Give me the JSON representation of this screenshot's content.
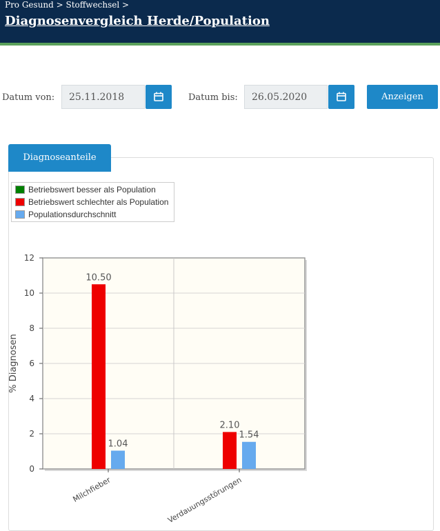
{
  "header": {
    "breadcrumb": "Pro Gesund > Stoffwechsel >",
    "title": "Diagnosenvergleich Herde/Population"
  },
  "filters": {
    "from_label": "Datum von:",
    "from_value": "25.11.2018",
    "to_label": "Datum bis:",
    "to_value": "26.05.2020",
    "calendar_icon": "calendar-icon",
    "submit_label": "Anzeigen"
  },
  "tabs": [
    {
      "label": "Diagnoseanteile",
      "active": true
    }
  ],
  "legend": [
    {
      "label": "Betriebswert besser als Population",
      "color": "#008000"
    },
    {
      "label": "Betriebswert schlechter als Population",
      "color": "#ee0000"
    },
    {
      "label": "Populationsdurchschnitt",
      "color": "#66aaee"
    }
  ],
  "chart_data": {
    "type": "bar",
    "categories": [
      "Milchfieber",
      "Verdauungsstörungen"
    ],
    "series": [
      {
        "name": "Betriebswert schlechter als Population",
        "values": [
          10.5,
          2.1
        ],
        "color": "#ee0000",
        "labels": [
          "10.50",
          "2.10"
        ]
      },
      {
        "name": "Populationsdurchschnitt",
        "values": [
          1.04,
          1.54
        ],
        "color": "#66aaee",
        "labels": [
          "1.04",
          "1.54"
        ]
      }
    ],
    "ylabel": "% Diagnosen",
    "ylim": [
      0,
      12
    ],
    "yticks": [
      0,
      2,
      4,
      6,
      8,
      10,
      12
    ],
    "grid": true,
    "background": "#fffdf5"
  }
}
